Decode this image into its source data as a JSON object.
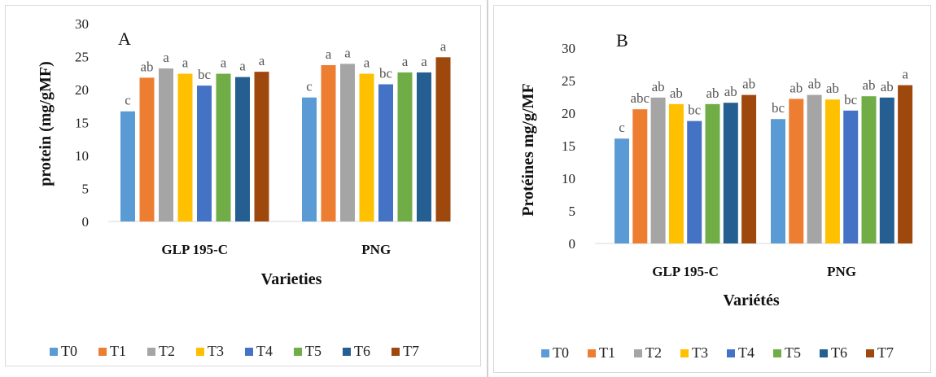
{
  "chart_data": [
    {
      "type": "bar",
      "panel_label": "A",
      "categories": [
        "GLP 195-C",
        "PNG"
      ],
      "series": [
        {
          "name": "T0",
          "values": [
            16.7,
            18.8
          ],
          "letters": [
            "c",
            "c"
          ],
          "color": "#5b9bd5"
        },
        {
          "name": "T1",
          "values": [
            21.8,
            23.7
          ],
          "letters": [
            "ab",
            "a"
          ],
          "color": "#ed7d31"
        },
        {
          "name": "T2",
          "values": [
            23.2,
            23.9
          ],
          "letters": [
            "a",
            "a"
          ],
          "color": "#a5a5a5"
        },
        {
          "name": "T3",
          "values": [
            22.4,
            22.4
          ],
          "letters": [
            "a",
            "a"
          ],
          "color": "#ffc000"
        },
        {
          "name": "T4",
          "values": [
            20.6,
            20.8
          ],
          "letters": [
            "bc",
            "bc"
          ],
          "color": "#4472c4"
        },
        {
          "name": "T5",
          "values": [
            22.4,
            22.6
          ],
          "letters": [
            "a",
            "a"
          ],
          "color": "#70ad47"
        },
        {
          "name": "T6",
          "values": [
            21.9,
            22.6
          ],
          "letters": [
            "a",
            "a"
          ],
          "color": "#255e91"
        },
        {
          "name": "T7",
          "values": [
            22.7,
            24.9
          ],
          "letters": [
            "a",
            "a"
          ],
          "color": "#9e480e"
        }
      ],
      "xlabel": "Varieties",
      "ylabel": "protein (mg/gMF)",
      "ylim": [
        0,
        30
      ],
      "yticks": [
        "0",
        "5",
        "10",
        "15",
        "20",
        "25",
        "30"
      ],
      "grid": false,
      "legend_position": "bottom"
    },
    {
      "type": "bar",
      "panel_label": "B",
      "categories": [
        "GLP 195-C",
        "PNG"
      ],
      "series": [
        {
          "name": "T0",
          "values": [
            16.1,
            19.1
          ],
          "letters": [
            "c",
            "bc"
          ],
          "color": "#5b9bd5"
        },
        {
          "name": "T1",
          "values": [
            20.6,
            22.2
          ],
          "letters": [
            "abc",
            "ab"
          ],
          "color": "#ed7d31"
        },
        {
          "name": "T2",
          "values": [
            22.4,
            22.8
          ],
          "letters": [
            "ab",
            "ab"
          ],
          "color": "#a5a5a5"
        },
        {
          "name": "T3",
          "values": [
            21.4,
            22.1
          ],
          "letters": [
            "ab",
            "ab"
          ],
          "color": "#ffc000"
        },
        {
          "name": "T4",
          "values": [
            18.8,
            20.4
          ],
          "letters": [
            "bc",
            "bc"
          ],
          "color": "#4472c4"
        },
        {
          "name": "T5",
          "values": [
            21.4,
            22.6
          ],
          "letters": [
            "ab",
            "ab"
          ],
          "color": "#70ad47"
        },
        {
          "name": "T6",
          "values": [
            21.6,
            22.4
          ],
          "letters": [
            "ab",
            "ab"
          ],
          "color": "#255e91"
        },
        {
          "name": "T7",
          "values": [
            22.8,
            24.3
          ],
          "letters": [
            "ab",
            "a"
          ],
          "color": "#9e480e"
        }
      ],
      "xlabel": "Variétés",
      "ylabel": "Protéines mg/g/MF",
      "ylim": [
        0,
        30
      ],
      "yticks": [
        "0",
        "5",
        "10",
        "15",
        "20",
        "25",
        "30"
      ],
      "grid": false,
      "legend_position": "bottom"
    }
  ]
}
